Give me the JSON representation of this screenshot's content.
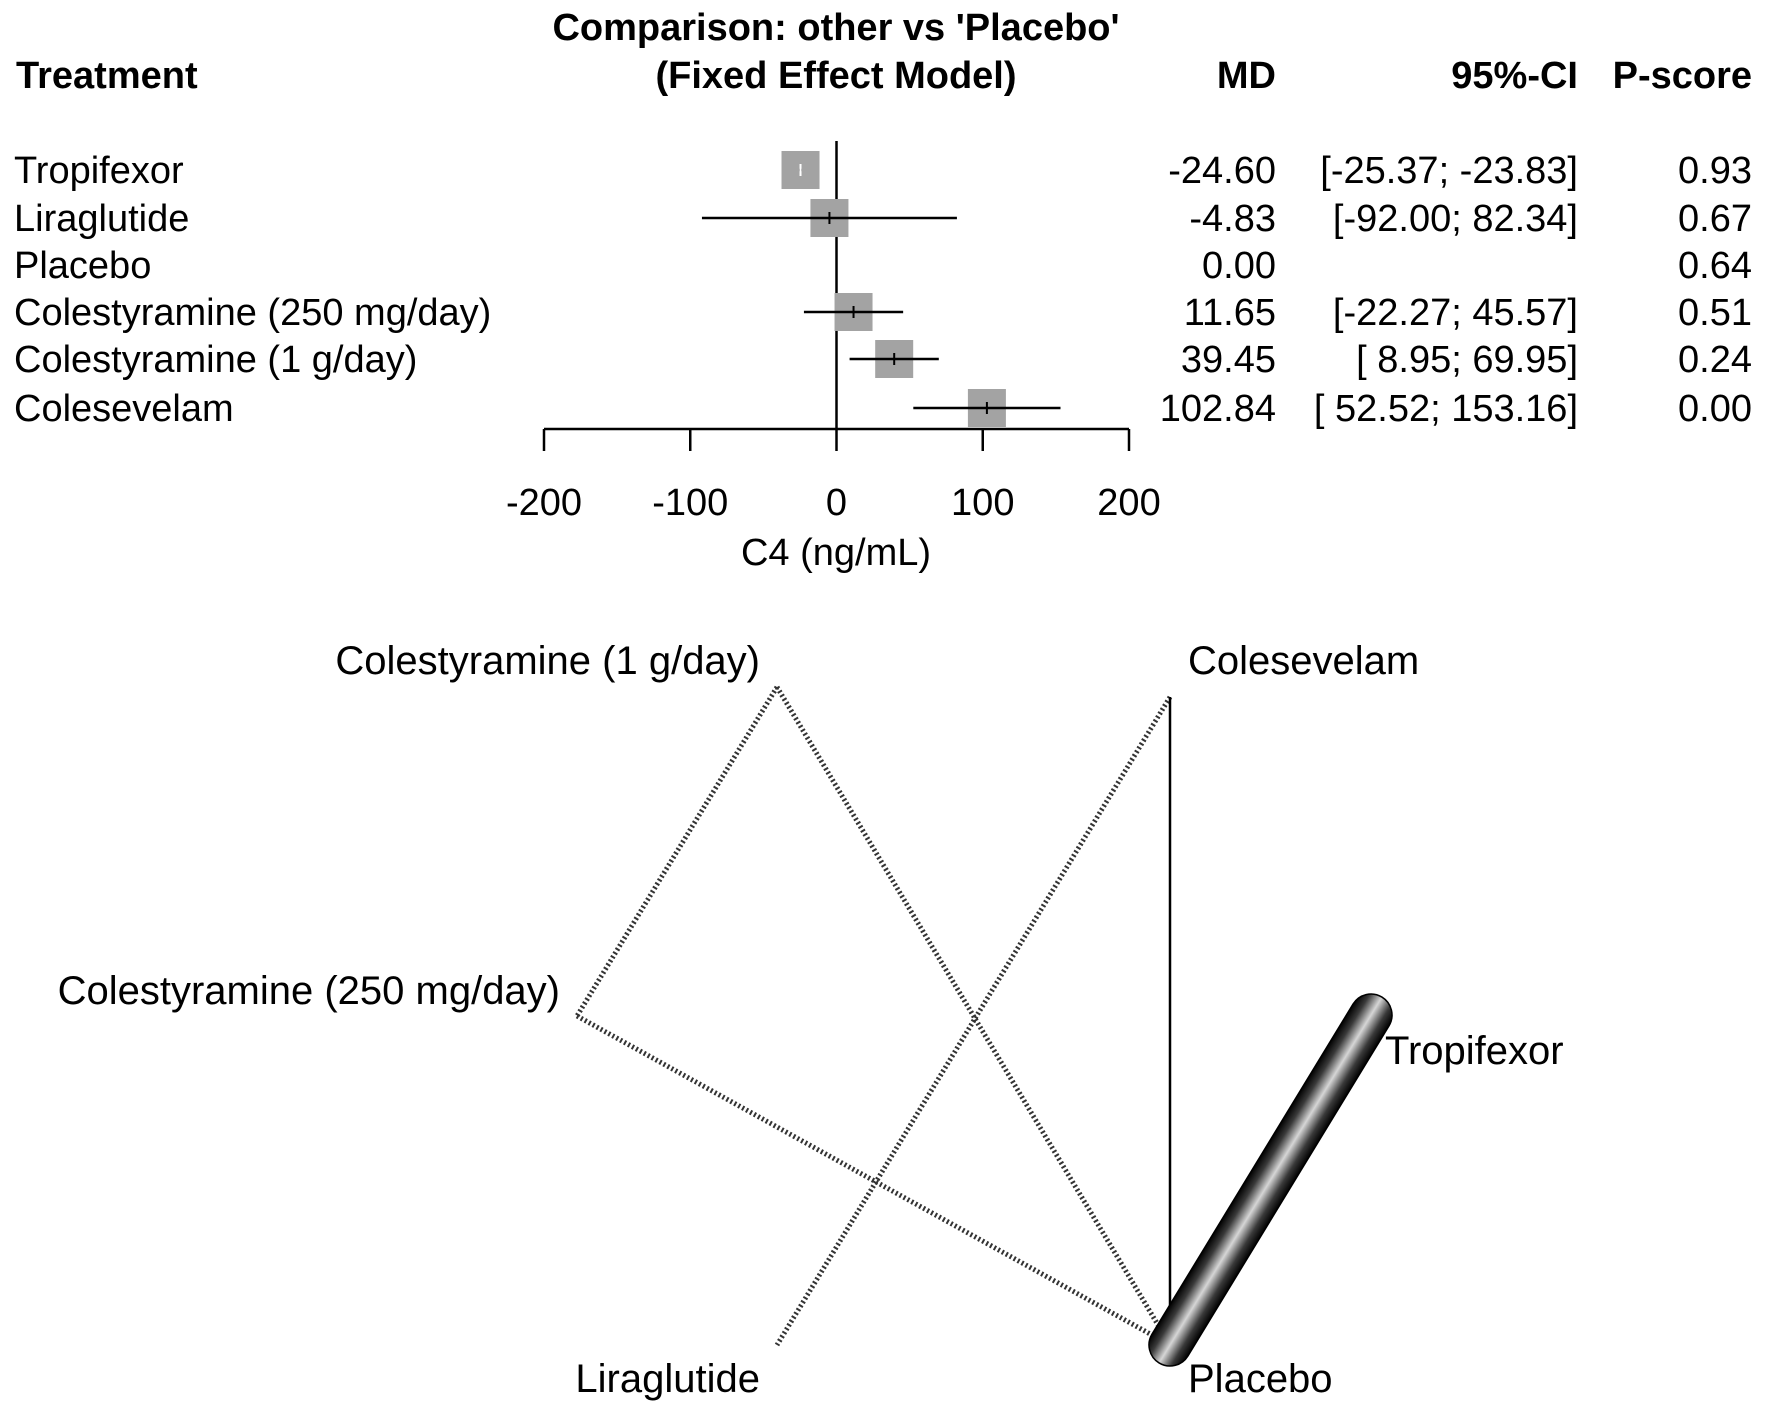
{
  "chart_data": [
    {
      "type": "forest",
      "title": "Comparison: other vs 'Placebo'",
      "subtitle": "(Fixed Effect Model)",
      "columns": {
        "treatment": "Treatment",
        "md": "MD",
        "ci": "95%-CI",
        "pscore": "P-score"
      },
      "xlabel": "C4 (ng/mL)",
      "xlim": [
        -200,
        200
      ],
      "xticks": [
        -200,
        -100,
        0,
        100,
        200
      ],
      "rows": [
        {
          "treatment": "Tropifexor",
          "md": -24.6,
          "lower": -25.37,
          "upper": -23.83,
          "md_text": "-24.60",
          "ci_text": "[-25.37; -23.83]",
          "pscore": "0.93"
        },
        {
          "treatment": "Liraglutide",
          "md": -4.83,
          "lower": -92.0,
          "upper": 82.34,
          "md_text": "-4.83",
          "ci_text": "[-92.00; 82.34]",
          "pscore": "0.67"
        },
        {
          "treatment": "Placebo",
          "md": 0.0,
          "lower": null,
          "upper": null,
          "md_text": "0.00",
          "ci_text": "",
          "pscore": "0.64"
        },
        {
          "treatment": "Colestyramine (250 mg/day)",
          "md": 11.65,
          "lower": -22.27,
          "upper": 45.57,
          "md_text": "11.65",
          "ci_text": "[-22.27; 45.57]",
          "pscore": "0.51"
        },
        {
          "treatment": "Colestyramine (1 g/day)",
          "md": 39.45,
          "lower": 8.95,
          "upper": 69.95,
          "md_text": "39.45",
          "ci_text": "[ 8.95; 69.95]",
          "pscore": "0.24"
        },
        {
          "treatment": "Colesevelam",
          "md": 102.84,
          "lower": 52.52,
          "upper": 153.16,
          "md_text": "102.84",
          "ci_text": "[ 52.52; 153.16]",
          "pscore": "0.00"
        }
      ]
    },
    {
      "type": "network",
      "nodes": [
        "Colestyramine (1 g/day)",
        "Colesevelam",
        "Colestyramine (250 mg/day)",
        "Tropifexor",
        "Liraglutide",
        "Placebo"
      ],
      "edges": [
        {
          "from": "Colestyramine (1 g/day)",
          "to": "Colestyramine (250 mg/day)",
          "style": "dotted",
          "weight": 1
        },
        {
          "from": "Colestyramine (1 g/day)",
          "to": "Placebo",
          "style": "dotted",
          "weight": 1
        },
        {
          "from": "Colesevelam",
          "to": "Liraglutide",
          "style": "dotted",
          "weight": 1
        },
        {
          "from": "Colesevelam",
          "to": "Placebo",
          "style": "solid",
          "weight": 1
        },
        {
          "from": "Colestyramine (250 mg/day)",
          "to": "Placebo",
          "style": "dotted",
          "weight": 1
        },
        {
          "from": "Tropifexor",
          "to": "Placebo",
          "style": "solid",
          "weight": 10
        }
      ]
    }
  ]
}
